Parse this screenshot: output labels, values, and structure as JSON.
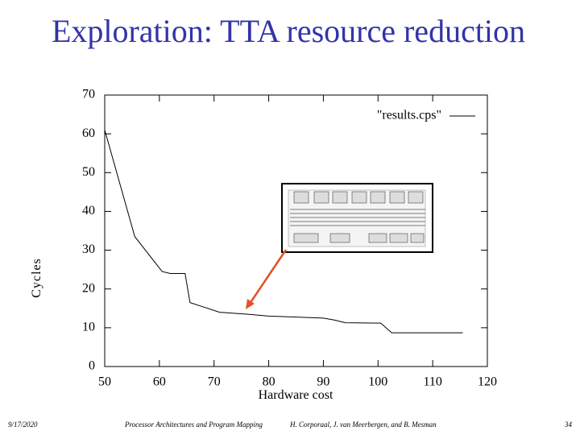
{
  "slide": {
    "title": "Exploration: TTA resource reduction",
    "date": "9/17/2020",
    "course": "Processor Architectures and Program Mapping",
    "authors": "H. Corporaal, J. van Meerbergen, and B. Mesman",
    "page": "34"
  },
  "chart_data": {
    "type": "line",
    "x_label": "Hardware cost",
    "y_label": "Cycles",
    "x": [
      50,
      55.5,
      60.5,
      62,
      64.7,
      65.6,
      71,
      76,
      80,
      90,
      92,
      94,
      100.5,
      102.5,
      115.5
    ],
    "series": [
      {
        "name": "\"results.cps\"",
        "color": "#000000",
        "values": [
          61,
          33.5,
          24.5,
          24,
          24,
          16.5,
          14,
          13.5,
          13,
          12.5,
          12,
          11.3,
          11.2,
          8.7,
          8.7
        ]
      }
    ],
    "xlim": [
      50,
      120
    ],
    "ylim": [
      0,
      70
    ],
    "xticks": [
      50,
      60,
      70,
      80,
      90,
      100,
      110,
      120
    ],
    "yticks": [
      0,
      10,
      20,
      30,
      40,
      50,
      60,
      70
    ],
    "legend": "top-right"
  }
}
